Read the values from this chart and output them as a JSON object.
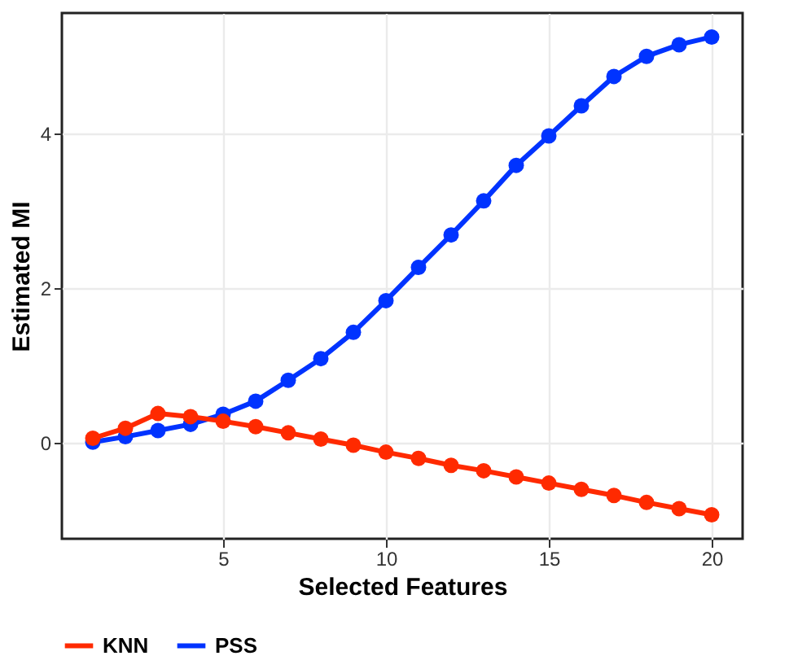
{
  "chart_data": {
    "type": "line",
    "xlabel": "Selected Features",
    "ylabel": "Estimated MI",
    "x": [
      1,
      2,
      3,
      4,
      5,
      6,
      7,
      8,
      9,
      10,
      11,
      12,
      13,
      14,
      15,
      16,
      17,
      18,
      19,
      20
    ],
    "series": [
      {
        "name": "KNN",
        "color": "#ff2a00",
        "values": [
          0.06,
          0.19,
          0.38,
          0.34,
          0.28,
          0.21,
          0.13,
          0.05,
          -0.03,
          -0.12,
          -0.2,
          -0.29,
          -0.36,
          -0.44,
          -0.52,
          -0.6,
          -0.68,
          -0.77,
          -0.85,
          -0.93
        ]
      },
      {
        "name": "PSS",
        "color": "#0033ff",
        "values": [
          0.01,
          0.08,
          0.16,
          0.24,
          0.37,
          0.54,
          0.81,
          1.09,
          1.43,
          1.84,
          2.27,
          2.69,
          3.13,
          3.59,
          3.97,
          4.36,
          4.74,
          5.0,
          5.15,
          5.25
        ]
      }
    ],
    "xlim": [
      0.05,
      20.95
    ],
    "xticks": [
      5,
      10,
      15,
      20
    ],
    "ylim": [
      -1.24,
      5.56
    ],
    "yticks": [
      0,
      2,
      4
    ],
    "grid": true,
    "legend": "bottom",
    "marker": "circle",
    "line_style": "solid"
  }
}
